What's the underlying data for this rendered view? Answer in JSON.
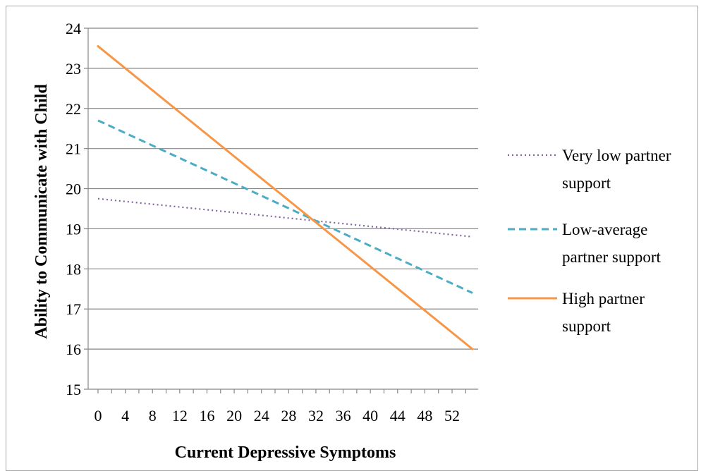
{
  "chart_data": {
    "type": "line",
    "title": "",
    "xlabel": "Current Depressive Symptoms",
    "ylabel": "Ability to Communicate with Child",
    "xlim": [
      0,
      55
    ],
    "ylim": [
      15,
      24
    ],
    "x_ticks": [
      0,
      4,
      8,
      12,
      16,
      20,
      24,
      28,
      32,
      36,
      40,
      44,
      48,
      52
    ],
    "y_ticks": [
      15,
      16,
      17,
      18,
      19,
      20,
      21,
      22,
      23,
      24
    ],
    "grid": "horizontal",
    "legend_position": "right",
    "series": [
      {
        "name_lines": [
          "Very low partner",
          "support"
        ],
        "style": "dotted",
        "color": "#8064a2",
        "x": [
          0,
          55
        ],
        "y": [
          19.75,
          18.8
        ]
      },
      {
        "name_lines": [
          "Low-average",
          "partner support"
        ],
        "style": "dashed",
        "color": "#4bacc6",
        "x": [
          0,
          55
        ],
        "y": [
          21.7,
          17.4
        ]
      },
      {
        "name_lines": [
          "High partner",
          "support"
        ],
        "style": "solid",
        "color": "#f79646",
        "x": [
          0,
          55
        ],
        "y": [
          23.55,
          16.0
        ]
      }
    ]
  }
}
